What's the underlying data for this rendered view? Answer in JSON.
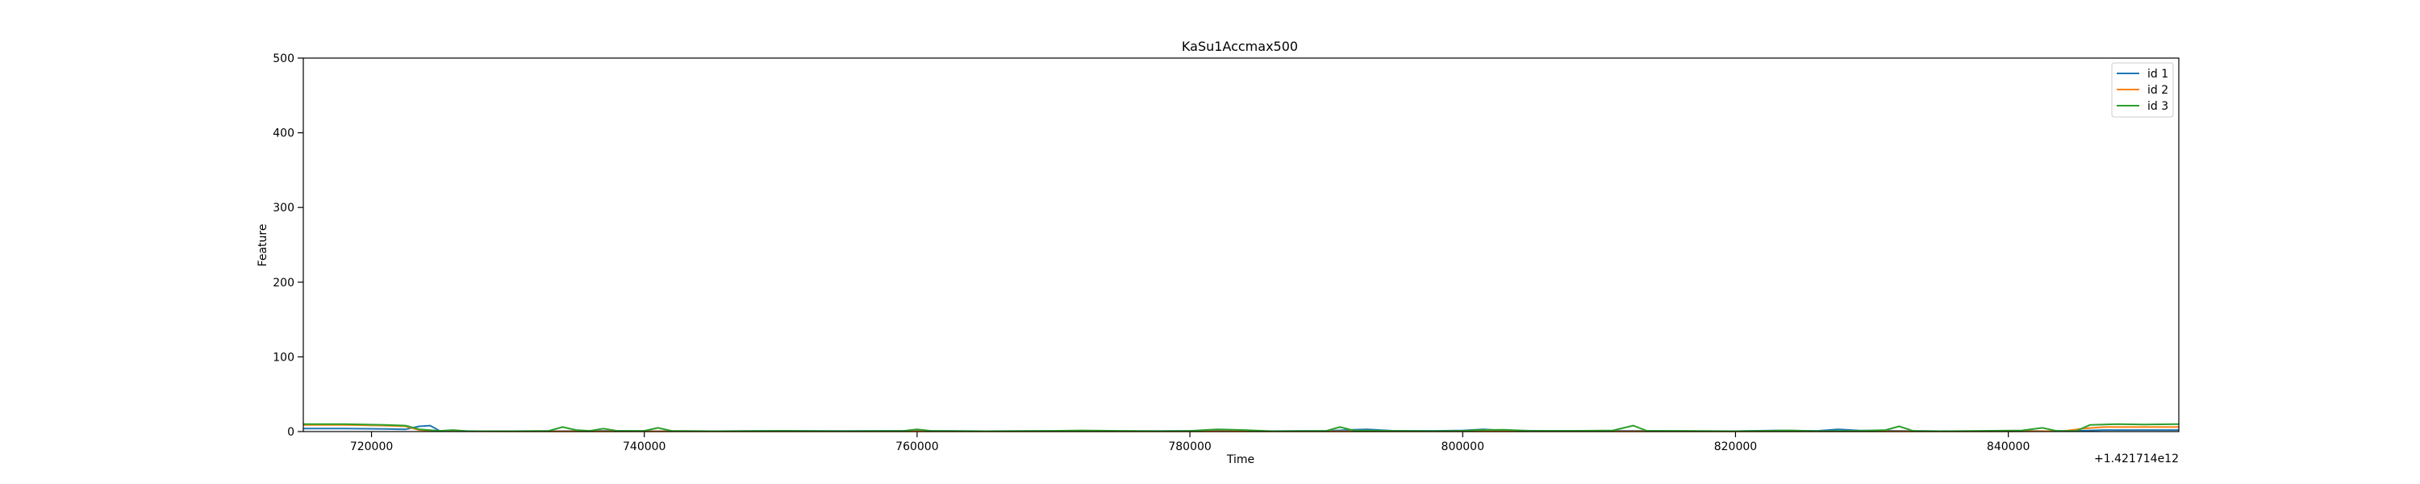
{
  "chart_data": {
    "type": "line",
    "title": "KaSu1Accmax500",
    "xlabel": "Time",
    "ylabel": "Feature",
    "x_offset_label": "+1.421714e12",
    "xlim": [
      715000,
      852500
    ],
    "ylim": [
      0,
      500
    ],
    "x_ticks": [
      720000,
      740000,
      760000,
      780000,
      800000,
      820000,
      840000
    ],
    "x_tick_labels": [
      "720000",
      "740000",
      "760000",
      "780000",
      "800000",
      "820000",
      "840000"
    ],
    "y_ticks": [
      0,
      100,
      200,
      300,
      400,
      500
    ],
    "y_tick_labels": [
      "0",
      "100",
      "200",
      "300",
      "400",
      "500"
    ],
    "grid": false,
    "legend_position": "top-right",
    "series": [
      {
        "name": "id 1",
        "color": "#1f77b4",
        "points": [
          [
            715000,
            4
          ],
          [
            718000,
            4
          ],
          [
            721000,
            3.5
          ],
          [
            722500,
            3
          ],
          [
            723500,
            7
          ],
          [
            724300,
            8
          ],
          [
            725000,
            1
          ],
          [
            728000,
            0.5
          ],
          [
            733000,
            0.5
          ],
          [
            737000,
            1
          ],
          [
            740000,
            0.5
          ],
          [
            745000,
            0.5
          ],
          [
            750000,
            1
          ],
          [
            755000,
            0.8
          ],
          [
            760000,
            1
          ],
          [
            765000,
            0.5
          ],
          [
            770000,
            0.8
          ],
          [
            775000,
            0.5
          ],
          [
            780000,
            1
          ],
          [
            782000,
            2
          ],
          [
            785000,
            0.5
          ],
          [
            790000,
            1
          ],
          [
            792000,
            2.5
          ],
          [
            793000,
            3
          ],
          [
            795000,
            1
          ],
          [
            798000,
            1
          ],
          [
            800000,
            1.5
          ],
          [
            801500,
            3
          ],
          [
            803000,
            1.5
          ],
          [
            806000,
            1
          ],
          [
            810000,
            1
          ],
          [
            813000,
            1
          ],
          [
            816000,
            0.5
          ],
          [
            820000,
            0.5
          ],
          [
            823000,
            1.5
          ],
          [
            826000,
            1
          ],
          [
            827500,
            3
          ],
          [
            829000,
            1.5
          ],
          [
            832000,
            1
          ],
          [
            835000,
            0.5
          ],
          [
            838000,
            0.5
          ],
          [
            841000,
            1
          ],
          [
            843000,
            0.5
          ],
          [
            845000,
            1
          ],
          [
            847000,
            2
          ],
          [
            849000,
            2
          ],
          [
            852500,
            2
          ]
        ]
      },
      {
        "name": "id 2",
        "color": "#ff7f0e",
        "points": [
          [
            715000,
            9
          ],
          [
            718000,
            9
          ],
          [
            721000,
            8
          ],
          [
            722500,
            7
          ],
          [
            723500,
            2
          ],
          [
            725000,
            0.5
          ],
          [
            730000,
            0.3
          ],
          [
            740000,
            0.3
          ],
          [
            750000,
            0.3
          ],
          [
            760000,
            0.3
          ],
          [
            770000,
            0.3
          ],
          [
            780000,
            0.3
          ],
          [
            790000,
            0.3
          ],
          [
            800000,
            0.3
          ],
          [
            810000,
            0.3
          ],
          [
            820000,
            0.3
          ],
          [
            830000,
            0.3
          ],
          [
            840000,
            0.3
          ],
          [
            844000,
            0.5
          ],
          [
            845500,
            4
          ],
          [
            847000,
            6
          ],
          [
            850000,
            6
          ],
          [
            852500,
            6
          ]
        ]
      },
      {
        "name": "id 3",
        "color": "#2ca02c",
        "points": [
          [
            715000,
            10
          ],
          [
            718000,
            10
          ],
          [
            721000,
            9
          ],
          [
            722500,
            8
          ],
          [
            723500,
            3
          ],
          [
            725000,
            1
          ],
          [
            726000,
            2
          ],
          [
            727000,
            0.5
          ],
          [
            730000,
            0.5
          ],
          [
            733000,
            1
          ],
          [
            734000,
            6
          ],
          [
            735000,
            2
          ],
          [
            736000,
            1
          ],
          [
            737000,
            4
          ],
          [
            738000,
            1
          ],
          [
            740000,
            1
          ],
          [
            741000,
            5
          ],
          [
            742000,
            1
          ],
          [
            745000,
            0.5
          ],
          [
            750000,
            1
          ],
          [
            755000,
            0.5
          ],
          [
            759000,
            1
          ],
          [
            760000,
            3
          ],
          [
            761000,
            1
          ],
          [
            765000,
            0.5
          ],
          [
            770000,
            1
          ],
          [
            772000,
            1.5
          ],
          [
            775000,
            1
          ],
          [
            778000,
            0.5
          ],
          [
            780000,
            1
          ],
          [
            782000,
            3
          ],
          [
            784000,
            2
          ],
          [
            786000,
            0.5
          ],
          [
            790000,
            1
          ],
          [
            791000,
            6
          ],
          [
            792000,
            1.5
          ],
          [
            795000,
            1
          ],
          [
            798000,
            0.5
          ],
          [
            800000,
            1
          ],
          [
            801000,
            2
          ],
          [
            803000,
            2.5
          ],
          [
            805000,
            1
          ],
          [
            808000,
            1
          ],
          [
            811000,
            1.5
          ],
          [
            812500,
            8
          ],
          [
            813500,
            1
          ],
          [
            816000,
            1
          ],
          [
            820000,
            0.5
          ],
          [
            822000,
            1
          ],
          [
            824000,
            1.5
          ],
          [
            826000,
            0.5
          ],
          [
            829000,
            1
          ],
          [
            831000,
            2
          ],
          [
            832000,
            7
          ],
          [
            833000,
            1
          ],
          [
            835000,
            0.5
          ],
          [
            838000,
            1
          ],
          [
            841000,
            1.5
          ],
          [
            842500,
            5
          ],
          [
            843500,
            1
          ],
          [
            845000,
            1
          ],
          [
            846000,
            9
          ],
          [
            848000,
            10
          ],
          [
            850000,
            9.5
          ],
          [
            852500,
            10
          ]
        ]
      }
    ]
  }
}
